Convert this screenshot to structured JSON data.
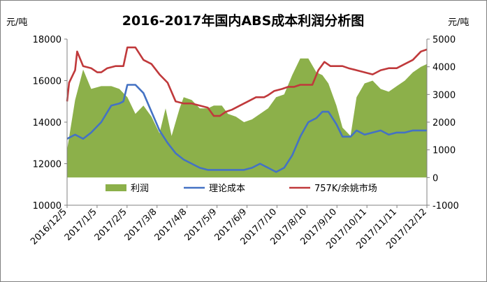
{
  "chart_data": {
    "type": "line",
    "title": "2016-2017年国内ABS成本利润分析图",
    "ylabel_left": "元/吨",
    "ylabel_right": "元/吨",
    "ylim_left": [
      10000,
      18000
    ],
    "yticks_left": [
      10000,
      12000,
      14000,
      16000,
      18000
    ],
    "ylim_right": [
      -1000,
      5000
    ],
    "yticks_right": [
      -1000,
      0,
      1000,
      2000,
      3000,
      4000,
      5000
    ],
    "x_tick_labels": [
      "2016/12/5",
      "2017/1/5",
      "2017/2/5",
      "2017/3/8",
      "2017/4/8",
      "2017/5/9",
      "2017/6/9",
      "2017/7/10",
      "2017/8/10",
      "2017/9/10",
      "2017/10/11",
      "2017/11/11",
      "2017/12/12"
    ],
    "grid": false,
    "legend_position": "bottom-center",
    "legend": [
      "利润",
      "理论成本",
      "757K/余姚市场"
    ],
    "series": [
      {
        "name": "利润",
        "type": "area",
        "axis": "right",
        "color": "#8cb04a",
        "points": [
          [
            0,
            1000
          ],
          [
            4,
            2800
          ],
          [
            8,
            3900
          ],
          [
            12,
            3200
          ],
          [
            17,
            3300
          ],
          [
            22,
            3300
          ],
          [
            26,
            3200
          ],
          [
            30,
            2900
          ],
          [
            34,
            2300
          ],
          [
            38,
            2600
          ],
          [
            42,
            2200
          ],
          [
            46,
            1600
          ],
          [
            49,
            2500
          ],
          [
            52,
            1500
          ],
          [
            56,
            2500
          ],
          [
            58,
            2900
          ],
          [
            62,
            2800
          ],
          [
            66,
            2500
          ],
          [
            70,
            2500
          ],
          [
            73,
            2600
          ],
          [
            77,
            2600
          ],
          [
            80,
            2300
          ],
          [
            84,
            2200
          ],
          [
            88,
            2000
          ],
          [
            92,
            2100
          ],
          [
            96,
            2300
          ],
          [
            100,
            2500
          ],
          [
            104,
            2900
          ],
          [
            108,
            3000
          ],
          [
            112,
            3700
          ],
          [
            116,
            4300
          ],
          [
            120,
            4300
          ],
          [
            124,
            3800
          ],
          [
            127,
            3700
          ],
          [
            130,
            3400
          ],
          [
            134,
            2600
          ],
          [
            137,
            1800
          ],
          [
            141,
            1500
          ],
          [
            144,
            2900
          ],
          [
            148,
            3400
          ],
          [
            152,
            3500
          ],
          [
            156,
            3200
          ],
          [
            160,
            3100
          ],
          [
            164,
            3300
          ],
          [
            168,
            3500
          ],
          [
            172,
            3800
          ],
          [
            176,
            4000
          ],
          [
            179,
            4100
          ]
        ]
      },
      {
        "name": "理论成本",
        "type": "line",
        "axis": "left",
        "color": "#4472c4",
        "points": [
          [
            0,
            13200
          ],
          [
            4,
            13400
          ],
          [
            8,
            13200
          ],
          [
            12,
            13500
          ],
          [
            17,
            14000
          ],
          [
            22,
            14800
          ],
          [
            26,
            14900
          ],
          [
            28,
            15000
          ],
          [
            30,
            15800
          ],
          [
            34,
            15800
          ],
          [
            38,
            15400
          ],
          [
            42,
            14500
          ],
          [
            46,
            13600
          ],
          [
            50,
            13000
          ],
          [
            54,
            12500
          ],
          [
            58,
            12200
          ],
          [
            62,
            12000
          ],
          [
            66,
            11800
          ],
          [
            70,
            11700
          ],
          [
            73,
            11700
          ],
          [
            76,
            11700
          ],
          [
            80,
            11700
          ],
          [
            84,
            11700
          ],
          [
            88,
            11700
          ],
          [
            92,
            11800
          ],
          [
            96,
            12000
          ],
          [
            100,
            11800
          ],
          [
            104,
            11600
          ],
          [
            108,
            11800
          ],
          [
            112,
            12400
          ],
          [
            116,
            13300
          ],
          [
            120,
            14000
          ],
          [
            124,
            14200
          ],
          [
            127,
            14500
          ],
          [
            130,
            14500
          ],
          [
            134,
            13900
          ],
          [
            137,
            13300
          ],
          [
            141,
            13300
          ],
          [
            144,
            13600
          ],
          [
            148,
            13400
          ],
          [
            152,
            13500
          ],
          [
            156,
            13600
          ],
          [
            160,
            13400
          ],
          [
            164,
            13500
          ],
          [
            168,
            13500
          ],
          [
            172,
            13600
          ],
          [
            176,
            13600
          ],
          [
            179,
            13600
          ]
        ]
      },
      {
        "name": "757K/余姚市场",
        "type": "line",
        "axis": "left",
        "color": "#c0393b",
        "points": [
          [
            0,
            15000
          ],
          [
            1,
            15900
          ],
          [
            4,
            16500
          ],
          [
            5,
            17400
          ],
          [
            8,
            16700
          ],
          [
            12,
            16600
          ],
          [
            15,
            16400
          ],
          [
            17,
            16400
          ],
          [
            20,
            16600
          ],
          [
            24,
            16700
          ],
          [
            28,
            16700
          ],
          [
            30,
            17600
          ],
          [
            34,
            17600
          ],
          [
            38,
            17000
          ],
          [
            42,
            16800
          ],
          [
            46,
            16300
          ],
          [
            50,
            15900
          ],
          [
            54,
            15000
          ],
          [
            58,
            14900
          ],
          [
            62,
            14900
          ],
          [
            66,
            14800
          ],
          [
            70,
            14700
          ],
          [
            73,
            14300
          ],
          [
            76,
            14300
          ],
          [
            79,
            14500
          ],
          [
            82,
            14600
          ],
          [
            86,
            14800
          ],
          [
            90,
            15000
          ],
          [
            94,
            15200
          ],
          [
            98,
            15200
          ],
          [
            100,
            15300
          ],
          [
            103,
            15500
          ],
          [
            107,
            15600
          ],
          [
            110,
            15700
          ],
          [
            113,
            15700
          ],
          [
            116,
            15800
          ],
          [
            119,
            15800
          ],
          [
            122,
            15800
          ],
          [
            125,
            16500
          ],
          [
            128,
            16900
          ],
          [
            131,
            16700
          ],
          [
            134,
            16700
          ],
          [
            137,
            16700
          ],
          [
            140,
            16600
          ],
          [
            144,
            16500
          ],
          [
            148,
            16400
          ],
          [
            152,
            16300
          ],
          [
            156,
            16500
          ],
          [
            160,
            16600
          ],
          [
            164,
            16600
          ],
          [
            168,
            16800
          ],
          [
            172,
            17000
          ],
          [
            176,
            17400
          ],
          [
            179,
            17500
          ]
        ]
      }
    ]
  }
}
